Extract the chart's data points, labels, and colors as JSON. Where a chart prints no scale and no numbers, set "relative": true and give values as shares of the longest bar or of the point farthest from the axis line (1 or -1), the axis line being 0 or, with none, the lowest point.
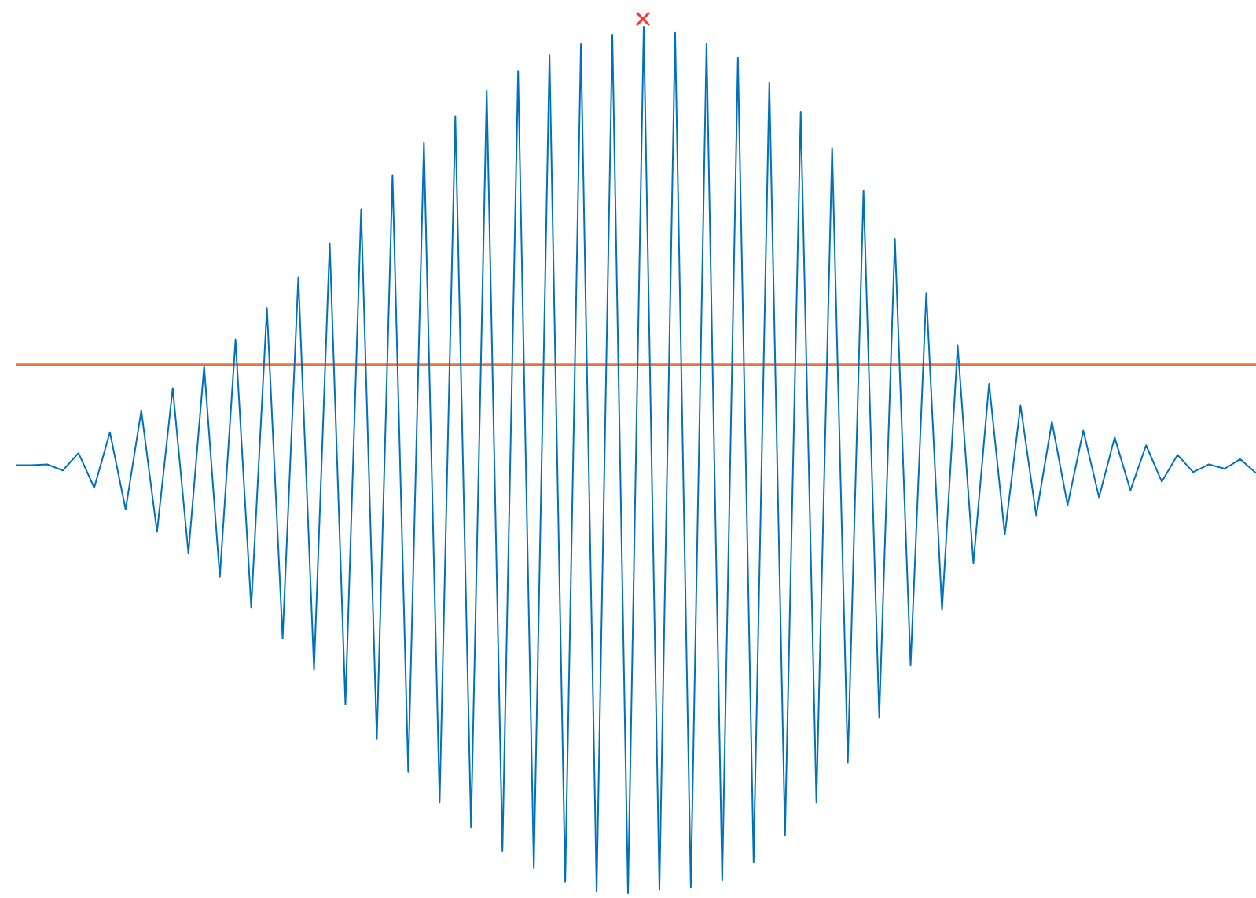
{
  "chart_data": {
    "type": "line",
    "relative": true,
    "categories": [
      null,
      null,
      null,
      null,
      null,
      null,
      null,
      null,
      null,
      null,
      null,
      null,
      null,
      null,
      null,
      null,
      null,
      null,
      null,
      null,
      null,
      null,
      null,
      null,
      null,
      null,
      null,
      null,
      null,
      null,
      null,
      null,
      null,
      null,
      null,
      null,
      null,
      null,
      null,
      null,
      null,
      null,
      null,
      null,
      null,
      null,
      null,
      null,
      null,
      null,
      null,
      null,
      null,
      null,
      null,
      null,
      null,
      null,
      null,
      null,
      null,
      null,
      null,
      null,
      null,
      null,
      null,
      null,
      null,
      null,
      null,
      null,
      null,
      null,
      null,
      null,
      null,
      null,
      null,
      null
    ],
    "series": [
      {
        "color": "#0072bd",
        "values": [
          0.494,
          0.494,
          0.495,
          0.488,
          0.508,
          0.468,
          0.532,
          0.443,
          0.557,
          0.417,
          0.583,
          0.392,
          0.608,
          0.365,
          0.639,
          0.33,
          0.675,
          0.294,
          0.711,
          0.258,
          0.75,
          0.218,
          0.789,
          0.178,
          0.829,
          0.14,
          0.866,
          0.105,
          0.897,
          0.076,
          0.926,
          0.049,
          0.949,
          0.029,
          0.967,
          0.013,
          0.98,
          0.002,
          0.991,
          0,
          1,
          0.004,
          0.993,
          0.007,
          0.98,
          0.015,
          0.964,
          0.036,
          0.936,
          0.067,
          0.902,
          0.105,
          0.86,
          0.151,
          0.811,
          0.203,
          0.755,
          0.263,
          0.693,
          0.327,
          0.632,
          0.381,
          0.588,
          0.414,
          0.563,
          0.436,
          0.544,
          0.448,
          0.534,
          0.457,
          0.526,
          0.465,
          0.517,
          0.475,
          0.506,
          0.486,
          0.495,
          0.49,
          0.501,
          0.485
        ]
      },
      {
        "color": "#e8743b",
        "values": [
          0.61,
          0.61,
          0.61,
          0.61,
          0.61,
          0.61,
          0.61,
          0.61,
          0.61,
          0.61,
          0.61,
          0.61,
          0.61,
          0.61,
          0.61,
          0.61,
          0.61,
          0.61,
          0.61,
          0.61,
          0.61,
          0.61,
          0.61,
          0.61,
          0.61,
          0.61,
          0.61,
          0.61,
          0.61,
          0.61,
          0.61,
          0.61,
          0.61,
          0.61,
          0.61,
          0.61,
          0.61,
          0.61,
          0.61,
          0.61,
          0.61,
          0.61,
          0.61,
          0.61,
          0.61,
          0.61,
          0.61,
          0.61,
          0.61,
          0.61,
          0.61,
          0.61,
          0.61,
          0.61,
          0.61,
          0.61,
          0.61,
          0.61,
          0.61,
          0.61,
          0.61,
          0.61,
          0.61,
          0.61,
          0.61,
          0.61,
          0.61,
          0.61,
          0.61,
          0.61,
          0.61,
          0.61,
          0.61,
          0.61,
          0.61,
          0.61,
          0.61,
          0.61,
          0.61,
          0.61
        ]
      }
    ]
  }
}
